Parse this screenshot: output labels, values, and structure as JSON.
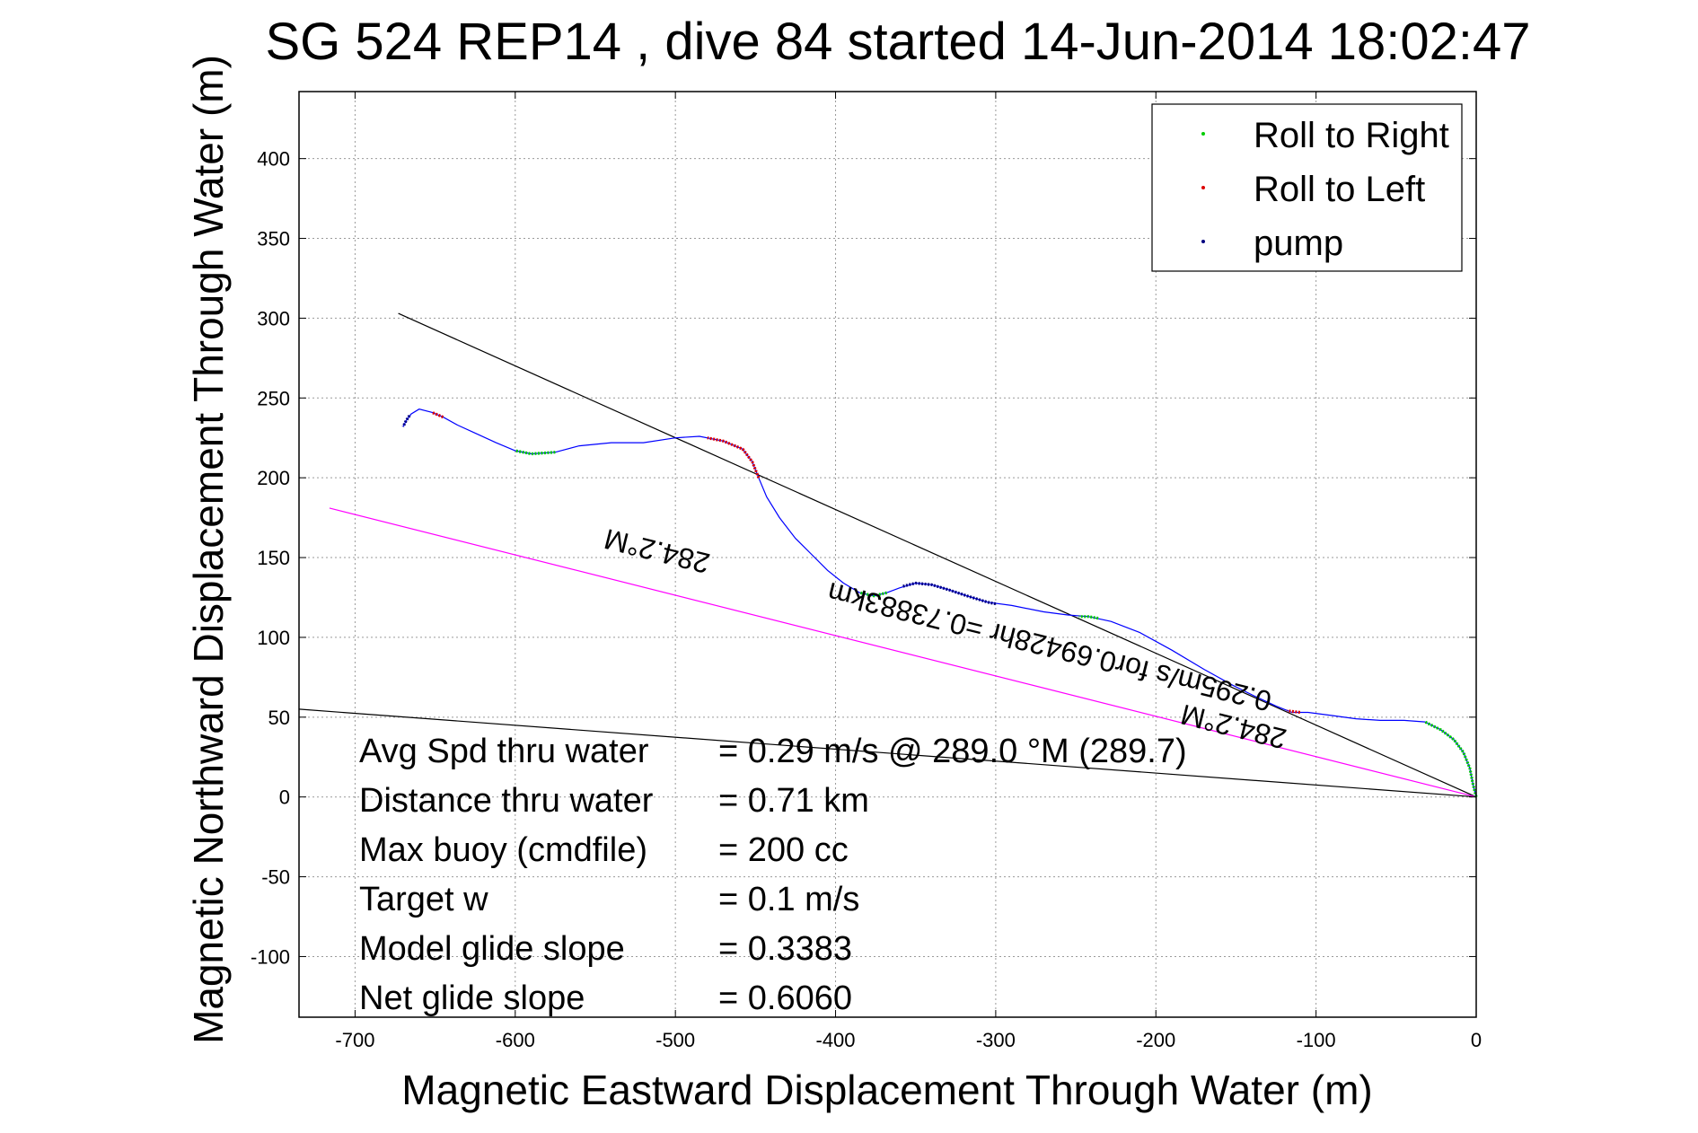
{
  "chart_data": {
    "type": "line",
    "title": "SG 524   REP14  , dive 84 started 14-Jun-2014 18:02:47",
    "xlabel": "Magnetic Eastward Displacement Through Water (m)",
    "ylabel": "Magnetic Northward Displacement Through Water (m)",
    "xlim": [
      -735,
      0
    ],
    "ylim": [
      -138,
      442
    ],
    "xticks": [
      -700,
      -600,
      -500,
      -400,
      -300,
      -200,
      -100,
      0
    ],
    "yticks": [
      -100,
      -50,
      0,
      50,
      100,
      150,
      200,
      250,
      300,
      350,
      400
    ],
    "grid": true,
    "legend": {
      "position": "top-right",
      "entries": [
        {
          "label": "Roll to Right",
          "color": "#00cc00"
        },
        {
          "label": "Roll to Left",
          "color": "#dd0000"
        },
        {
          "label": "pump",
          "color": "#000080"
        }
      ]
    },
    "series": [
      {
        "color": "#0000ff",
        "points": [
          [
            0,
            0
          ],
          [
            -2,
            8
          ],
          [
            -4,
            18
          ],
          [
            -8,
            28
          ],
          [
            -14,
            36
          ],
          [
            -22,
            42
          ],
          [
            -32,
            47
          ],
          [
            -45,
            48
          ],
          [
            -60,
            48
          ],
          [
            -75,
            49
          ],
          [
            -90,
            51
          ],
          [
            -105,
            53
          ],
          [
            -115,
            53
          ],
          [
            -125,
            57
          ],
          [
            -138,
            63
          ],
          [
            -152,
            70
          ],
          [
            -170,
            80
          ],
          [
            -190,
            92
          ],
          [
            -210,
            103
          ],
          [
            -228,
            110
          ],
          [
            -242,
            113
          ],
          [
            -255,
            114
          ],
          [
            -270,
            116
          ],
          [
            -290,
            120
          ],
          [
            -305,
            122
          ],
          [
            -318,
            126
          ],
          [
            -330,
            130
          ],
          [
            -340,
            133
          ],
          [
            -350,
            134
          ],
          [
            -360,
            131
          ],
          [
            -368,
            128
          ],
          [
            -376,
            126
          ],
          [
            -385,
            128
          ],
          [
            -395,
            134
          ],
          [
            -405,
            142
          ],
          [
            -415,
            152
          ],
          [
            -425,
            162
          ],
          [
            -435,
            175
          ],
          [
            -443,
            188
          ],
          [
            -448,
            200
          ],
          [
            -452,
            210
          ],
          [
            -458,
            218
          ],
          [
            -470,
            223
          ],
          [
            -485,
            226
          ],
          [
            -500,
            225
          ],
          [
            -520,
            222
          ],
          [
            -540,
            222
          ],
          [
            -560,
            220
          ],
          [
            -575,
            216
          ],
          [
            -590,
            215
          ],
          [
            -600,
            217
          ],
          [
            -612,
            222
          ],
          [
            -625,
            228
          ],
          [
            -636,
            233
          ],
          [
            -645,
            238
          ],
          [
            -652,
            241
          ],
          [
            -660,
            243
          ],
          [
            -665,
            240
          ],
          [
            -668,
            236
          ],
          [
            -670,
            232
          ]
        ]
      },
      {
        "name": "Roll to Right",
        "color": "#00cc00",
        "segments": [
          [
            [
              0,
              0
            ],
            [
              -2,
              8
            ],
            [
              -4,
              18
            ],
            [
              -8,
              28
            ],
            [
              -14,
              36
            ],
            [
              -22,
              42
            ],
            [
              -32,
              47
            ]
          ],
          [
            [
              -236,
              112
            ],
            [
              -242,
              113
            ],
            [
              -248,
              113
            ]
          ],
          [
            [
              -368,
              128
            ],
            [
              -376,
              126
            ],
            [
              -385,
              128
            ]
          ],
          [
            [
              -575,
              216
            ],
            [
              -590,
              215
            ],
            [
              -600,
              217
            ]
          ]
        ]
      },
      {
        "name": "Roll to Left",
        "color": "#dd0000",
        "segments": [
          [
            [
              -448,
              200
            ],
            [
              -452,
              210
            ],
            [
              -458,
              218
            ],
            [
              -470,
              223
            ],
            [
              -480,
              225
            ]
          ],
          [
            [
              -110,
              53
            ],
            [
              -118,
              54
            ]
          ],
          [
            [
              -645,
              238
            ],
            [
              -652,
              241
            ]
          ]
        ]
      },
      {
        "name": "pump",
        "color": "#000080",
        "segments": [
          [
            [
              -300,
              121
            ],
            [
              -305,
              122
            ],
            [
              -318,
              126
            ],
            [
              -330,
              130
            ],
            [
              -340,
              133
            ],
            [
              -350,
              134
            ],
            [
              -358,
              132
            ]
          ],
          [
            [
              -666,
              239
            ],
            [
              -668,
              236
            ],
            [
              -670,
              232
            ]
          ]
        ]
      }
    ],
    "reference_lines": [
      {
        "color": "#000000",
        "points": [
          [
            -735,
            55
          ],
          [
            0,
            0
          ]
        ]
      },
      {
        "color": "#000000",
        "points": [
          [
            -673,
            303
          ],
          [
            0,
            0
          ]
        ]
      },
      {
        "color": "#ff00ff",
        "points": [
          [
            -716,
            181
          ],
          [
            0,
            0
          ]
        ]
      }
    ],
    "annotations": [
      {
        "text": "284.2°M",
        "x": -510,
        "y": 160,
        "angle": 194
      },
      {
        "text": "0.295m/s for0.69428hr =0.73883km",
        "x": -265,
        "y": 100,
        "angle": 194
      },
      {
        "text": "284.2°M",
        "x": -150,
        "y": 50,
        "angle": 194
      }
    ],
    "stats": [
      {
        "label": "Avg Spd thru water",
        "value": "=  0.29 m/s @ 289.0 °M (289.7)"
      },
      {
        "label": "Distance thru water",
        "value": "=  0.71 km"
      },
      {
        "label": "Max buoy (cmdfile)",
        "value": "= 200 cc"
      },
      {
        "label": "Target w",
        "value": "= 0.1 m/s"
      },
      {
        "label": "Model glide slope",
        "value": "= 0.3383"
      },
      {
        "label": "Net glide slope",
        "value": "= 0.6060"
      }
    ]
  }
}
